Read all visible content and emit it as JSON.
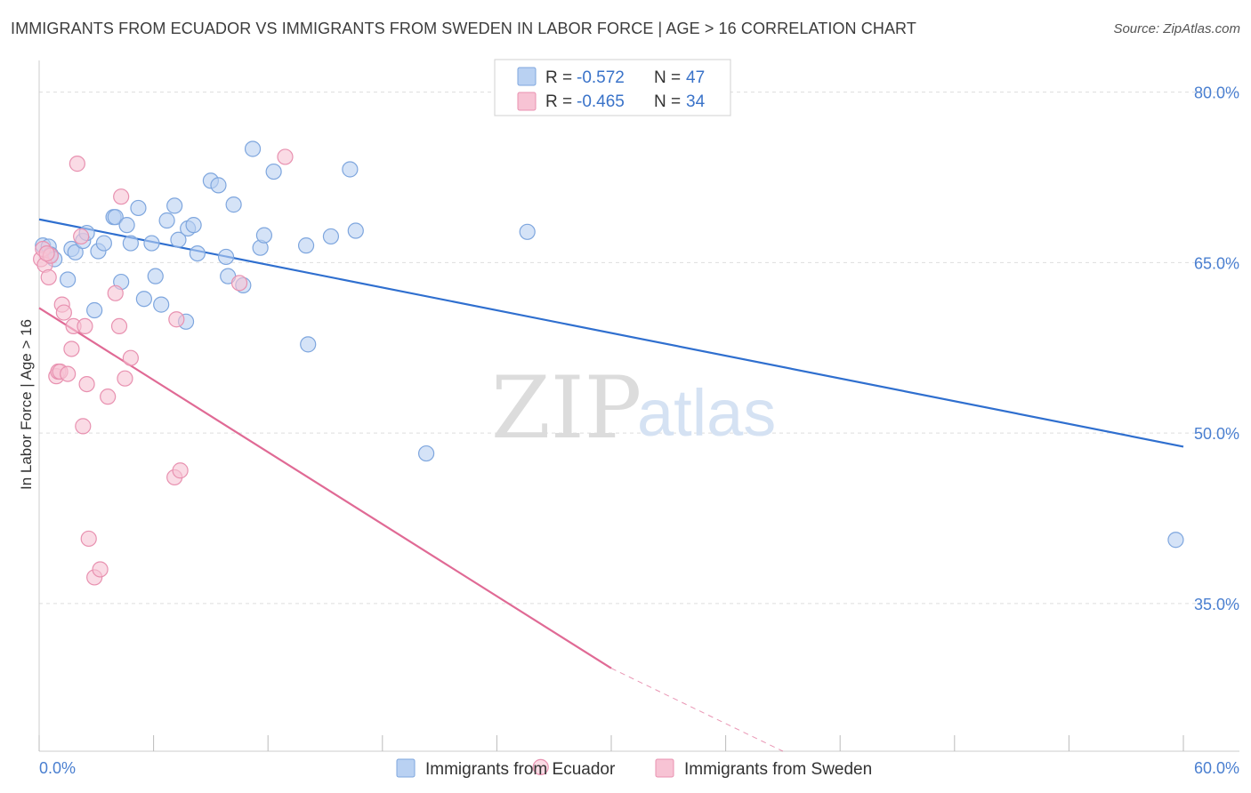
{
  "title": "IMMIGRANTS FROM ECUADOR VS IMMIGRANTS FROM SWEDEN IN LABOR FORCE | AGE > 16 CORRELATION CHART",
  "source": "Source: ZipAtlas.com",
  "watermark": {
    "zip": "ZIP",
    "atlas": "atlas"
  },
  "colors": {
    "ecuador_fill": "#b9d1f2",
    "ecuador_stroke": "#7ea6de",
    "ecuador_line": "#2f6fcf",
    "sweden_fill": "#f7c3d4",
    "sweden_stroke": "#e891b0",
    "sweden_line": "#e06a95",
    "axis_text": "#4a7fd0",
    "grid": "#dddddd"
  },
  "legend": {
    "rows": [
      {
        "r_label": "R =",
        "r_value": "-0.572",
        "n_label": "N =",
        "n_value": "47"
      },
      {
        "r_label": "R =",
        "r_value": "-0.465",
        "n_label": "N =",
        "n_value": "34"
      }
    ]
  },
  "chart_data": {
    "type": "scatter",
    "title": "IMMIGRANTS FROM ECUADOR VS IMMIGRANTS FROM SWEDEN IN LABOR FORCE | AGE > 16 CORRELATION CHART",
    "xlabel": "",
    "ylabel": "In Labor Force | Age > 16",
    "xlim": [
      0,
      60
    ],
    "ylim": [
      22,
      82
    ],
    "x_tick_labels": [
      "0.0%",
      "60.0%"
    ],
    "y_ticks": [
      35,
      50,
      65,
      80
    ],
    "y_tick_labels": [
      "35.0%",
      "50.0%",
      "65.0%",
      "80.0%"
    ],
    "grid": true,
    "legend_position": "top-center",
    "series": [
      {
        "name": "Immigrants from Ecuador",
        "points": [
          [
            0.2,
            66.5
          ],
          [
            0.5,
            66.4
          ],
          [
            0.6,
            65.7
          ],
          [
            0.8,
            65.3
          ],
          [
            1.5,
            63.5
          ],
          [
            1.7,
            66.2
          ],
          [
            1.9,
            65.9
          ],
          [
            2.3,
            66.9
          ],
          [
            2.5,
            67.6
          ],
          [
            2.9,
            60.8
          ],
          [
            3.1,
            66.0
          ],
          [
            3.4,
            66.7
          ],
          [
            3.9,
            69.0
          ],
          [
            4.0,
            69.0
          ],
          [
            4.3,
            63.3
          ],
          [
            4.6,
            68.3
          ],
          [
            4.8,
            66.7
          ],
          [
            5.2,
            69.8
          ],
          [
            5.5,
            61.8
          ],
          [
            5.9,
            66.7
          ],
          [
            6.1,
            63.8
          ],
          [
            6.4,
            61.3
          ],
          [
            6.7,
            68.7
          ],
          [
            7.1,
            70.0
          ],
          [
            7.3,
            67.0
          ],
          [
            7.7,
            59.8
          ],
          [
            7.8,
            68.0
          ],
          [
            8.1,
            68.3
          ],
          [
            8.3,
            65.8
          ],
          [
            9.0,
            72.2
          ],
          [
            9.4,
            71.8
          ],
          [
            9.8,
            65.5
          ],
          [
            9.9,
            63.8
          ],
          [
            10.2,
            70.1
          ],
          [
            10.7,
            63.0
          ],
          [
            11.2,
            75.0
          ],
          [
            11.6,
            66.3
          ],
          [
            11.8,
            67.4
          ],
          [
            12.3,
            73.0
          ],
          [
            14.1,
            57.8
          ],
          [
            15.3,
            67.3
          ],
          [
            16.3,
            73.2
          ],
          [
            16.6,
            67.8
          ],
          [
            20.3,
            48.2
          ],
          [
            25.6,
            67.7
          ],
          [
            59.6,
            40.6
          ],
          [
            14.0,
            66.5
          ]
        ]
      },
      {
        "name": "Immigrants from Sweden",
        "points": [
          [
            0.1,
            65.3
          ],
          [
            0.2,
            66.2
          ],
          [
            0.3,
            64.8
          ],
          [
            0.5,
            63.7
          ],
          [
            0.6,
            65.6
          ],
          [
            0.9,
            55.0
          ],
          [
            1.0,
            55.4
          ],
          [
            1.1,
            55.4
          ],
          [
            1.2,
            61.3
          ],
          [
            1.3,
            60.6
          ],
          [
            1.5,
            55.2
          ],
          [
            1.7,
            57.4
          ],
          [
            1.8,
            59.4
          ],
          [
            2.0,
            73.7
          ],
          [
            2.2,
            67.3
          ],
          [
            2.3,
            50.6
          ],
          [
            2.4,
            59.4
          ],
          [
            2.5,
            54.3
          ],
          [
            2.6,
            40.7
          ],
          [
            2.9,
            37.3
          ],
          [
            3.2,
            38.0
          ],
          [
            3.6,
            53.2
          ],
          [
            4.0,
            62.3
          ],
          [
            4.2,
            59.4
          ],
          [
            4.3,
            70.8
          ],
          [
            4.5,
            54.8
          ],
          [
            4.8,
            56.6
          ],
          [
            7.1,
            46.1
          ],
          [
            7.2,
            60.0
          ],
          [
            7.4,
            46.7
          ],
          [
            10.5,
            63.2
          ],
          [
            12.9,
            74.3
          ],
          [
            26.3,
            20.6
          ],
          [
            0.4,
            65.8
          ]
        ]
      }
    ],
    "trend_lines": [
      {
        "series": "Immigrants from Ecuador",
        "x": [
          0,
          60
        ],
        "y": [
          68.8,
          48.8
        ]
      },
      {
        "series": "Immigrants from Sweden",
        "x": [
          0,
          30
        ],
        "y": [
          61.0,
          29.3
        ],
        "dashed_extension": {
          "x": [
            30,
            39
          ],
          "y": [
            29.3,
            22.0
          ]
        }
      }
    ]
  }
}
